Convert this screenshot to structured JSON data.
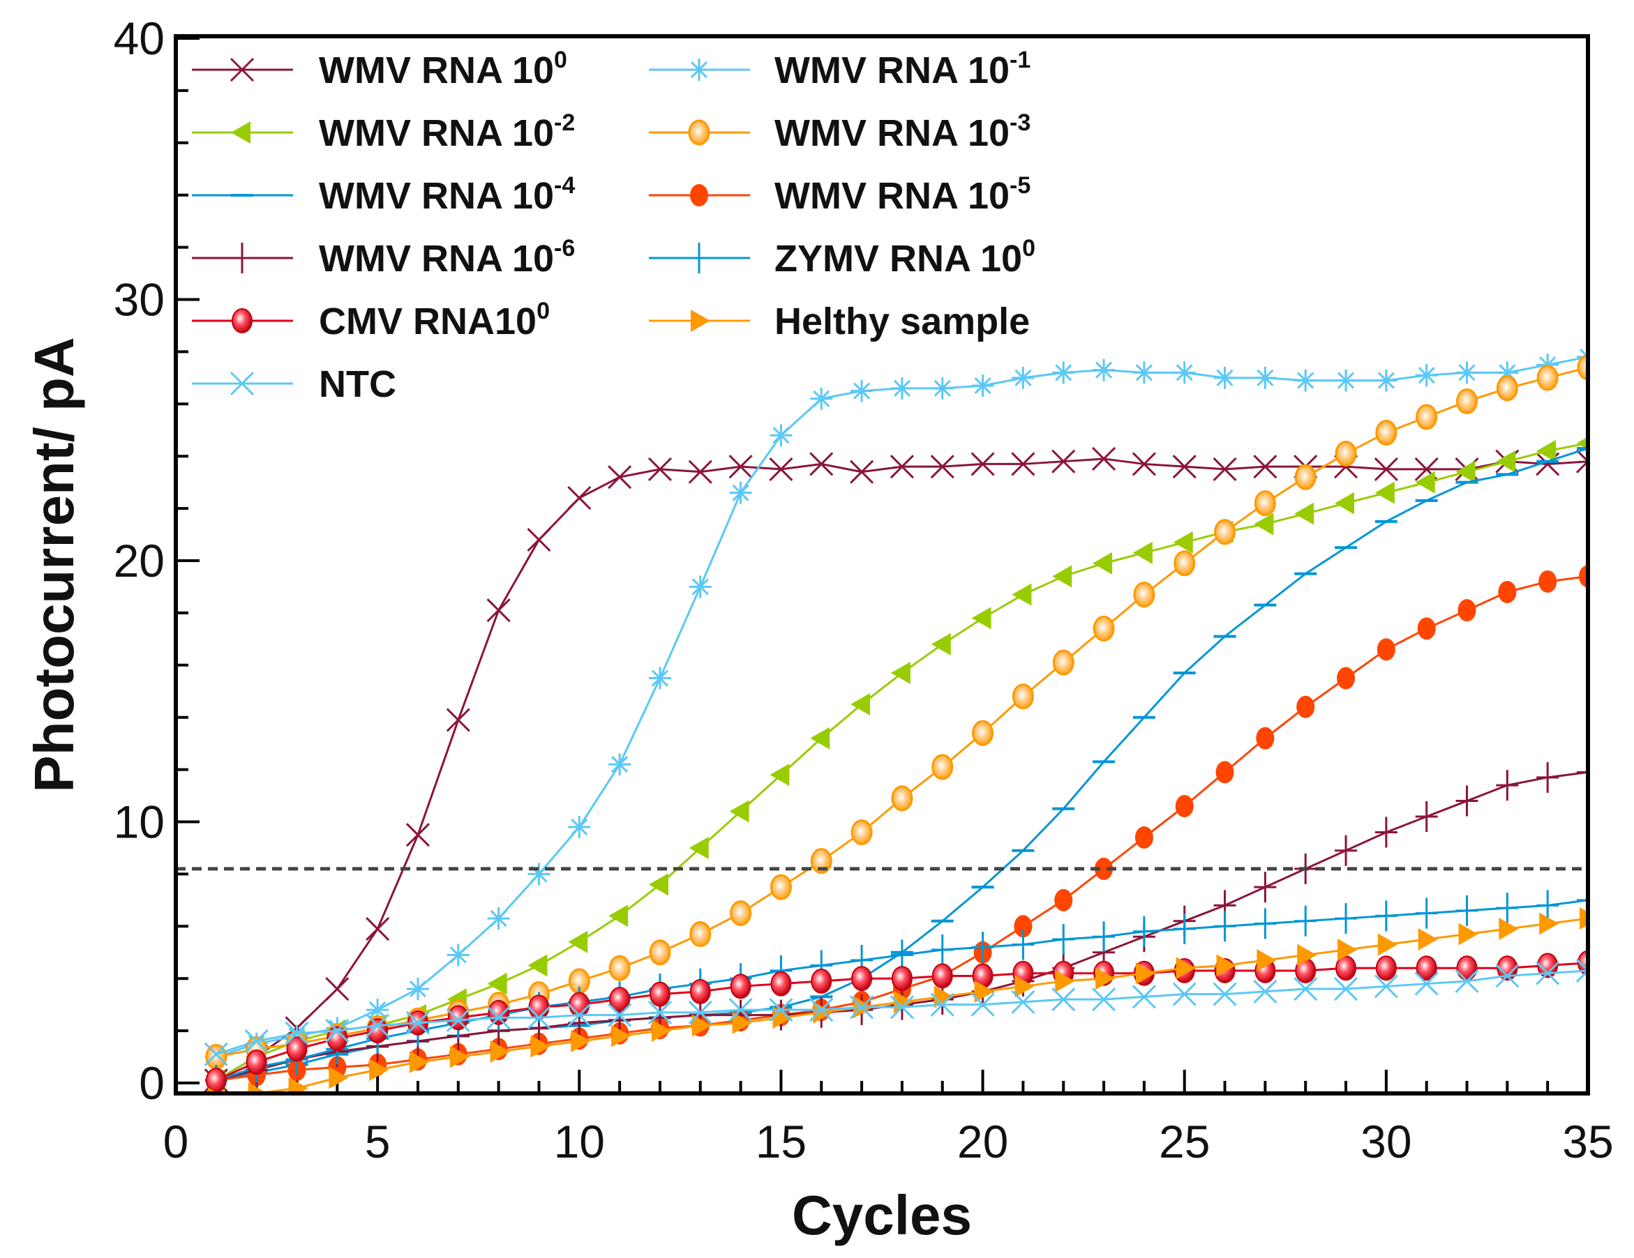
{
  "chart_data": {
    "type": "line",
    "xlabel": "Cycles",
    "ylabel": "Photocurrent/ pA",
    "xlim": [
      0,
      35
    ],
    "ylim": [
      -0.4,
      40
    ],
    "xticks": [
      "0",
      "5",
      "10",
      "15",
      "20",
      "25",
      "30",
      "35"
    ],
    "yticks": [
      "0",
      "10",
      "20",
      "30",
      "40"
    ],
    "threshold": 8.2,
    "legend_placement": "top-left",
    "x": [
      1,
      2,
      3,
      4,
      5,
      6,
      7,
      8,
      9,
      10,
      11,
      12,
      13,
      14,
      15,
      16,
      17,
      18,
      19,
      20,
      21,
      22,
      23,
      24,
      25,
      26,
      27,
      28,
      29,
      30,
      31,
      32,
      33,
      34,
      35
    ],
    "series": [
      {
        "name": "WMV RNA 10",
        "sup": "0",
        "color": "#8b1538",
        "marker": "x",
        "values": [
          0.1,
          1.0,
          2.1,
          3.6,
          5.9,
          9.5,
          13.9,
          18.1,
          20.8,
          22.4,
          23.2,
          23.5,
          23.4,
          23.6,
          23.5,
          23.7,
          23.4,
          23.6,
          23.6,
          23.7,
          23.7,
          23.8,
          23.9,
          23.7,
          23.6,
          23.5,
          23.6,
          23.6,
          23.6,
          23.5,
          23.5,
          23.5,
          23.8,
          23.7,
          23.8
        ]
      },
      {
        "name": "WMV RNA 10",
        "sup": "-1",
        "color": "#5bc8f5",
        "marker": "star",
        "values": [
          1.0,
          1.5,
          1.8,
          2.1,
          2.8,
          3.6,
          4.9,
          6.3,
          8.0,
          9.8,
          12.2,
          15.5,
          19.0,
          22.6,
          24.8,
          26.2,
          26.5,
          26.6,
          26.6,
          26.7,
          27.0,
          27.2,
          27.3,
          27.2,
          27.2,
          27.0,
          27.0,
          26.9,
          26.9,
          26.9,
          27.1,
          27.2,
          27.2,
          27.5,
          27.8
        ]
      },
      {
        "name": "WMV RNA 10",
        "sup": "-2",
        "color": "#99cc00",
        "marker": "tri-left",
        "values": [
          0.1,
          1.0,
          1.6,
          2.0,
          2.2,
          2.6,
          3.2,
          3.8,
          4.5,
          5.4,
          6.4,
          7.6,
          9.0,
          10.4,
          11.8,
          13.2,
          14.5,
          15.7,
          16.8,
          17.8,
          18.7,
          19.4,
          19.9,
          20.3,
          20.7,
          21.1,
          21.4,
          21.8,
          22.2,
          22.6,
          23.0,
          23.4,
          23.8,
          24.2,
          24.5
        ]
      },
      {
        "name": "WMV RNA 10",
        "sup": "-3",
        "color": "#ff9900",
        "marker": "circle-open",
        "values": [
          1.0,
          1.3,
          1.5,
          1.8,
          2.1,
          2.4,
          2.7,
          3.0,
          3.4,
          3.9,
          4.4,
          5.0,
          5.7,
          6.5,
          7.5,
          8.5,
          9.6,
          10.9,
          12.1,
          13.4,
          14.8,
          16.1,
          17.4,
          18.7,
          19.9,
          21.1,
          22.2,
          23.2,
          24.1,
          24.9,
          25.5,
          26.1,
          26.6,
          27.0,
          27.4
        ]
      },
      {
        "name": "WMV RNA 10",
        "sup": "-4",
        "color": "#0096d6",
        "marker": "hbar",
        "values": [
          0.1,
          0.4,
          0.7,
          1.1,
          1.4,
          1.6,
          1.8,
          2.0,
          2.1,
          2.2,
          2.4,
          2.5,
          2.6,
          2.7,
          2.9,
          3.3,
          4.0,
          5.0,
          6.2,
          7.5,
          8.9,
          10.5,
          12.3,
          14.0,
          15.7,
          17.1,
          18.3,
          19.5,
          20.5,
          21.5,
          22.3,
          23.0,
          23.3,
          23.8,
          24.3
        ]
      },
      {
        "name": "WMV RNA 10",
        "sup": "-5",
        "color": "#ff4500",
        "marker": "circle",
        "values": [
          0.1,
          0.3,
          0.5,
          0.6,
          0.7,
          0.9,
          1.1,
          1.3,
          1.5,
          1.7,
          1.9,
          2.1,
          2.2,
          2.4,
          2.6,
          2.8,
          3.1,
          3.6,
          4.1,
          5.0,
          6.0,
          7.0,
          8.2,
          9.4,
          10.6,
          11.9,
          13.2,
          14.4,
          15.5,
          16.6,
          17.4,
          18.1,
          18.8,
          19.2,
          19.4
        ]
      },
      {
        "name": "WMV RNA 10",
        "sup": "-6",
        "color": "#8b1538",
        "marker": "plus",
        "values": [
          0.1,
          0.5,
          0.9,
          1.2,
          1.4,
          1.6,
          1.8,
          2.0,
          2.1,
          2.3,
          2.4,
          2.5,
          2.6,
          2.6,
          2.6,
          2.7,
          2.8,
          3.0,
          3.2,
          3.5,
          3.9,
          4.4,
          5.0,
          5.6,
          6.2,
          6.8,
          7.5,
          8.2,
          8.9,
          9.6,
          10.2,
          10.8,
          11.4,
          11.7,
          11.9
        ]
      },
      {
        "name": "ZYMV RNA 10",
        "sup": "0",
        "color": "#0096d6",
        "marker": "plus",
        "values": [
          0.1,
          0.6,
          0.9,
          1.3,
          1.7,
          2.0,
          2.3,
          2.6,
          2.9,
          3.1,
          3.3,
          3.6,
          3.8,
          4.0,
          4.3,
          4.5,
          4.7,
          4.9,
          5.1,
          5.2,
          5.3,
          5.5,
          5.6,
          5.8,
          5.9,
          6.0,
          6.1,
          6.2,
          6.3,
          6.4,
          6.5,
          6.6,
          6.7,
          6.8,
          7.0
        ]
      },
      {
        "name": "CMV RNA10",
        "sup": "0",
        "color": "#e0001a",
        "marker": "sphere",
        "values": [
          0.1,
          0.8,
          1.3,
          1.7,
          2.0,
          2.3,
          2.5,
          2.7,
          2.9,
          3.0,
          3.2,
          3.4,
          3.5,
          3.7,
          3.8,
          3.9,
          4.0,
          4.0,
          4.1,
          4.1,
          4.2,
          4.2,
          4.2,
          4.2,
          4.3,
          4.3,
          4.3,
          4.3,
          4.4,
          4.4,
          4.4,
          4.4,
          4.4,
          4.5,
          4.6
        ]
      },
      {
        "name": "Helthy sample",
        "sup": "",
        "color": "#ff9900",
        "marker": "tri-right",
        "values": [
          -0.6,
          -0.4,
          -0.2,
          0.2,
          0.5,
          0.8,
          1.0,
          1.2,
          1.4,
          1.6,
          1.8,
          2.0,
          2.2,
          2.3,
          2.5,
          2.7,
          2.9,
          3.1,
          3.3,
          3.5,
          3.7,
          3.9,
          4.0,
          4.2,
          4.4,
          4.5,
          4.7,
          4.9,
          5.1,
          5.3,
          5.5,
          5.7,
          5.9,
          6.1,
          6.3
        ]
      },
      {
        "name": "NTC",
        "sup": "",
        "color": "#5bc8f5",
        "marker": "x",
        "values": [
          1.1,
          1.6,
          1.9,
          2.0,
          2.2,
          2.3,
          2.4,
          2.5,
          2.5,
          2.6,
          2.6,
          2.7,
          2.7,
          2.8,
          2.8,
          2.8,
          2.9,
          2.9,
          3.0,
          3.0,
          3.1,
          3.2,
          3.2,
          3.3,
          3.4,
          3.4,
          3.5,
          3.6,
          3.6,
          3.7,
          3.8,
          3.9,
          4.1,
          4.2,
          4.3
        ]
      }
    ]
  }
}
